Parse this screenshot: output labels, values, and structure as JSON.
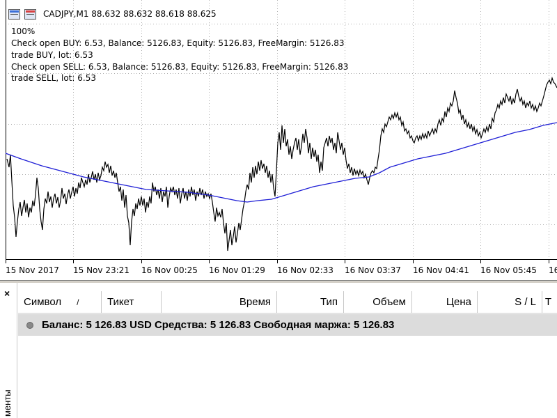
{
  "chart": {
    "title": "CADJPY,M1  88.632 88.632 88.618 88.625",
    "icons": [
      "chart-window-icon",
      "chart-window-red-icon"
    ],
    "overlay_lines": [
      "100%",
      "Check open BUY: 6.53, Balance: 5126.83, Equity: 5126.83, FreeMargin: 5126.83",
      "trade BUY, lot: 6.53",
      "Check open SELL: 6.53, Balance: 5126.83, Equity: 5126.83, FreeMargin: 5126.83",
      "trade SELL, lot: 6.53"
    ],
    "time_labels": [
      "15 Nov 2017",
      "15 Nov 23:21",
      "16 Nov 00:25",
      "16 Nov 01:29",
      "16 Nov 02:33",
      "16 Nov 03:37",
      "16 Nov 04:41",
      "16 Nov 05:45",
      "16"
    ],
    "colors": {
      "price": "#000000",
      "moving_average": "#1f1fd6",
      "grid": "#b0b0b0"
    }
  },
  "terminal": {
    "close_symbol": "×",
    "side_label": "менты",
    "columns": [
      {
        "label": "Символ",
        "sort_indicator": "/"
      },
      {
        "label": "Тикет"
      },
      {
        "label": "Время"
      },
      {
        "label": "Тип"
      },
      {
        "label": "Объем"
      },
      {
        "label": "Цена"
      },
      {
        "label": "S / L"
      },
      {
        "label": "T"
      }
    ],
    "balance_line": "Баланс: 5 126.83 USD  Средства: 5 126.83  Свободная маржа: 5 126.83"
  }
}
